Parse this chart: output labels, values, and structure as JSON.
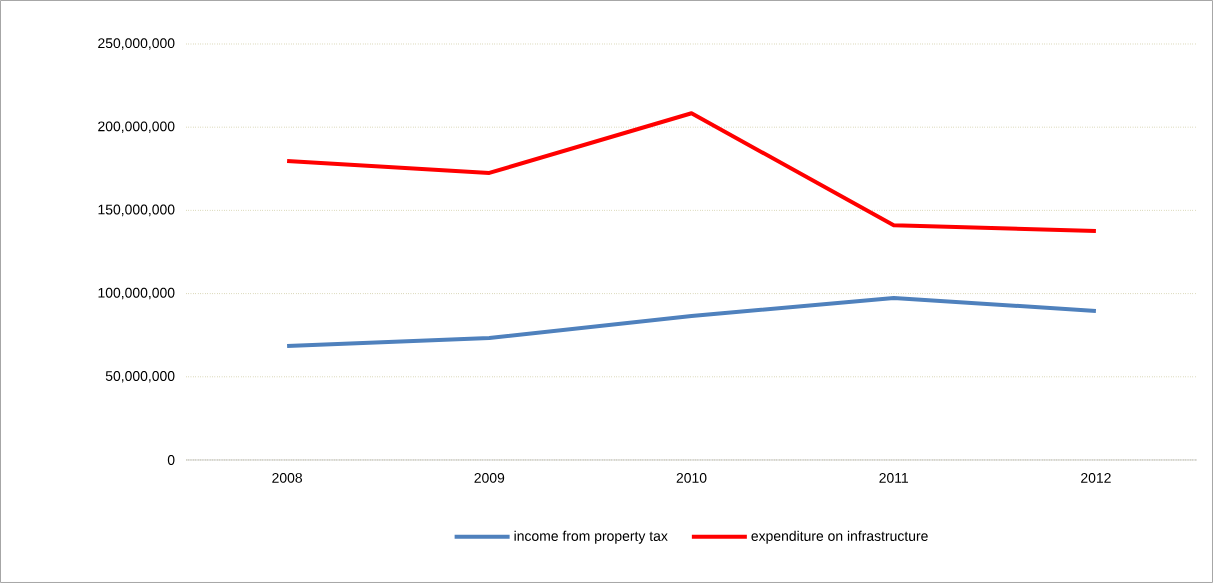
{
  "chart_data": {
    "type": "line",
    "categories": [
      "2008",
      "2009",
      "2010",
      "2011",
      "2012"
    ],
    "series": [
      {
        "name": "income from property tax",
        "color": "#4f81bd",
        "values": [
          68500000,
          73300000,
          86500000,
          97400000,
          89500000
        ]
      },
      {
        "name": "expenditure on infrastructure",
        "color": "#ff0000",
        "values": [
          179700000,
          172500000,
          208400000,
          141000000,
          137600000
        ]
      }
    ],
    "ylim": [
      0,
      250000000
    ],
    "yticks": [
      {
        "value": 0,
        "label": "0"
      },
      {
        "value": 50000000,
        "label": "50,000,000"
      },
      {
        "value": 100000000,
        "label": "100,000,000"
      },
      {
        "value": 150000000,
        "label": "150,000,000"
      },
      {
        "value": 200000000,
        "label": "200,000,000"
      },
      {
        "value": 250000000,
        "label": "250,000,000"
      }
    ],
    "grid": "y",
    "legend": "bottom",
    "marker": "none",
    "line_style": "solid"
  }
}
